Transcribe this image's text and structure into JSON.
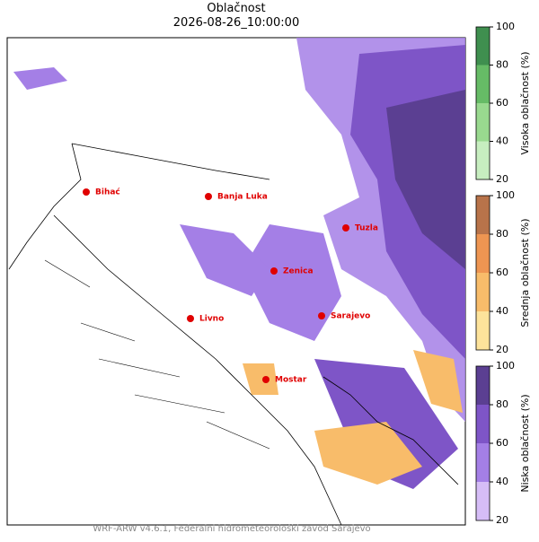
{
  "header": {
    "title": "Oblačnost",
    "subtitle": "2026-08-26_10:00:00"
  },
  "cities": [
    {
      "label": "Bihać"
    },
    {
      "label": "Banja Luka"
    },
    {
      "label": "Tuzla"
    },
    {
      "label": "Zenica"
    },
    {
      "label": "Livno"
    },
    {
      "label": "Sarajevo"
    },
    {
      "label": "Mostar"
    }
  ],
  "colorbars": [
    {
      "label": "Visoka oblačnost (%)",
      "ticks": [
        20,
        40,
        60,
        80,
        100
      ],
      "colors": [
        "#c7eec0",
        "#99d98f",
        "#66bb66",
        "#3f8f4f"
      ]
    },
    {
      "label": "Srednja oblačnost (%)",
      "ticks": [
        20,
        40,
        60,
        80,
        100
      ],
      "colors": [
        "#fde39b",
        "#f8bc6a",
        "#ee9552",
        "#b8734a"
      ]
    },
    {
      "label": "Niska oblačnost (%)",
      "ticks": [
        20,
        40,
        60,
        80,
        100
      ],
      "colors": [
        "#d6bdf7",
        "#a47fe6",
        "#7e55c7",
        "#5b3f92"
      ]
    }
  ],
  "footer": "WRF-ARW v4.6.1, Federalni hidrometeorološki zavod Sarajevo"
}
